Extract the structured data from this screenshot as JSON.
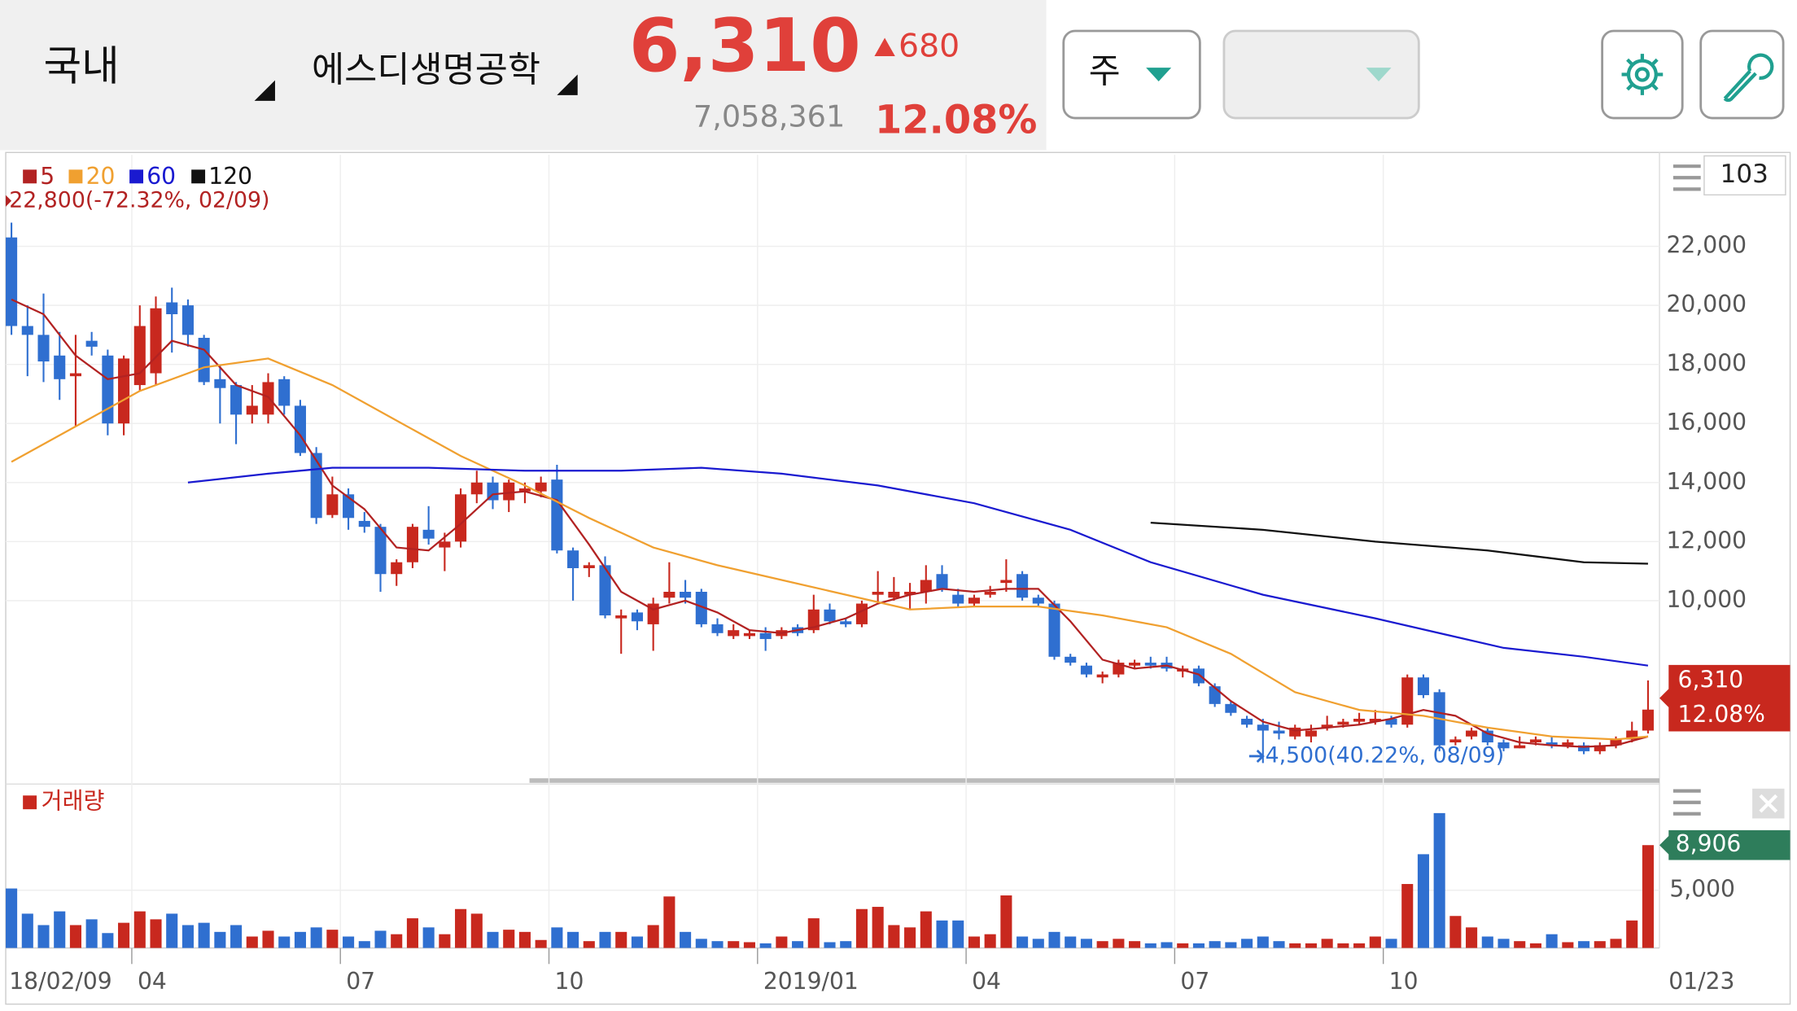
{
  "header": {
    "market": "국내",
    "stock": "에스디생명공학",
    "price": "6,310",
    "change": "680",
    "volume": "7,058,361",
    "change_pct": "12.08%",
    "period": "주",
    "count": "103"
  },
  "chart_data": {
    "type": "candlestick",
    "categories": [
      "18/02/09",
      null,
      null,
      null,
      null,
      null,
      null,
      null,
      "04",
      null,
      null,
      null,
      null,
      null,
      null,
      null,
      null,
      null,
      null,
      null,
      null,
      "07",
      null,
      null,
      null,
      null,
      null,
      null,
      null,
      null,
      null,
      null,
      null,
      null,
      "10",
      null,
      null,
      null,
      null,
      null,
      null,
      null,
      null,
      null,
      null,
      null,
      null,
      "2019/01",
      null,
      null,
      null,
      null,
      null,
      null,
      null,
      null,
      null,
      null,
      null,
      null,
      "04",
      null,
      null,
      null,
      null,
      null,
      null,
      null,
      null,
      null,
      null,
      null,
      null,
      "07",
      null,
      null,
      null,
      null,
      null,
      null,
      null,
      null,
      null,
      null,
      null,
      null,
      "10",
      null,
      null,
      null,
      null,
      null,
      null,
      null,
      null,
      null,
      null,
      null,
      null,
      null,
      null,
      null,
      "01/23"
    ],
    "open": [
      22300,
      19300,
      19000,
      18300,
      17600,
      18800,
      18300,
      16000,
      17300,
      17700,
      20100,
      20000,
      18900,
      17500,
      17300,
      16300,
      16300,
      17500,
      16600,
      15000,
      12900,
      13600,
      12700,
      12500,
      10900,
      11300,
      12400,
      11800,
      12000,
      13600,
      14000,
      13400,
      13700,
      13700,
      14100,
      11700,
      11100,
      11200,
      9400,
      9600,
      9200,
      10100,
      10300,
      10300,
      9200,
      8800,
      8800,
      8900,
      8800,
      9100,
      9000,
      9700,
      9300,
      9200,
      10200,
      10100,
      10200,
      10300,
      10900,
      10200,
      9900,
      10200,
      10600,
      10900,
      10100,
      9900,
      8100,
      7800,
      7400,
      7500,
      7800,
      7900,
      7900,
      7600,
      7700,
      7100,
      6500,
      6000,
      5800,
      5600,
      5400,
      5400,
      5700,
      5800,
      5900,
      5900,
      6000,
      5800,
      7400,
      6900,
      5200,
      5400,
      5600,
      5200,
      5000,
      5200,
      5200,
      5100,
      5100,
      4900,
      5100,
      5300,
      5600
    ],
    "high": [
      22800,
      20000,
      20400,
      19100,
      19000,
      19100,
      18500,
      18300,
      20000,
      20300,
      20600,
      20200,
      19000,
      18000,
      17400,
      17300,
      17700,
      17600,
      16800,
      15200,
      14200,
      13800,
      13000,
      12600,
      11400,
      12600,
      13200,
      12300,
      13800,
      14400,
      14200,
      14100,
      14000,
      14200,
      14600,
      11800,
      11300,
      11500,
      9700,
      9700,
      10100,
      11300,
      10700,
      10400,
      9400,
      9200,
      9000,
      9100,
      9100,
      9200,
      10200,
      9900,
      9400,
      10000,
      11000,
      10800,
      10600,
      11200,
      11200,
      10400,
      10200,
      10500,
      11400,
      11000,
      10200,
      10000,
      8200,
      7900,
      7600,
      8000,
      8000,
      8100,
      8100,
      7800,
      7800,
      7200,
      6600,
      6100,
      6000,
      5900,
      5800,
      5800,
      6100,
      6000,
      6200,
      6300,
      6100,
      7500,
      7500,
      7000,
      5400,
      5700,
      5700,
      5300,
      5400,
      5400,
      5400,
      5300,
      5200,
      5200,
      5400,
      5900,
      7300
    ],
    "low": [
      19000,
      17600,
      17400,
      16800,
      15900,
      18300,
      15600,
      15600,
      17100,
      17300,
      18400,
      18600,
      17300,
      16000,
      15300,
      16000,
      16000,
      16300,
      14900,
      12600,
      12800,
      12400,
      12300,
      10300,
      10500,
      11100,
      11900,
      11000,
      11800,
      13300,
      13100,
      13000,
      13300,
      13500,
      11600,
      10000,
      10800,
      9400,
      8200,
      9000,
      8300,
      9900,
      9900,
      9100,
      8800,
      8700,
      8700,
      8300,
      8700,
      8800,
      8900,
      9200,
      9100,
      9100,
      9900,
      10000,
      9700,
      9900,
      10300,
      9800,
      9800,
      10100,
      10300,
      10000,
      9800,
      8000,
      7800,
      7400,
      7200,
      7400,
      7700,
      7700,
      7600,
      7400,
      7100,
      6400,
      6100,
      5700,
      4500,
      5300,
      5300,
      5200,
      5600,
      5700,
      5800,
      5800,
      5700,
      5700,
      6700,
      4900,
      5100,
      5300,
      5100,
      4900,
      5000,
      5100,
      5000,
      5000,
      4800,
      4800,
      5000,
      5200,
      5500
    ],
    "close": [
      19300,
      19000,
      18100,
      17500,
      17700,
      18600,
      16000,
      18200,
      19300,
      19900,
      19700,
      19000,
      17400,
      17200,
      16300,
      16600,
      17400,
      16600,
      15000,
      12800,
      13600,
      12800,
      12500,
      10900,
      11300,
      12500,
      12100,
      12000,
      13600,
      14000,
      13400,
      14000,
      13800,
      14000,
      11700,
      11100,
      11200,
      9500,
      9500,
      9300,
      9900,
      10300,
      10100,
      9200,
      8900,
      9000,
      8900,
      8700,
      9000,
      8900,
      9700,
      9300,
      9200,
      9900,
      10300,
      10300,
      10300,
      10700,
      10400,
      9900,
      10100,
      10300,
      10700,
      10100,
      9900,
      8100,
      7900,
      7500,
      7500,
      7900,
      7900,
      7800,
      7700,
      7700,
      7200,
      6500,
      6200,
      5800,
      5600,
      5500,
      5700,
      5600,
      5800,
      5900,
      6000,
      6000,
      5800,
      7400,
      6800,
      5100,
      5300,
      5600,
      5200,
      5000,
      5100,
      5300,
      5100,
      5200,
      4900,
      5100,
      5300,
      5600,
      6310
    ],
    "up_color": "#c8281e",
    "down_color": "#2f6fd0",
    "flat_color": "#2e7d32",
    "ylim": [
      4100,
      25100
    ],
    "yticks": [
      {
        "value": 10000,
        "label": "10,000"
      },
      {
        "value": 12000,
        "label": "12,000"
      },
      {
        "value": 14000,
        "label": "14,000"
      },
      {
        "value": 16000,
        "label": "16,000"
      },
      {
        "value": 18000,
        "label": "18,000"
      },
      {
        "value": 20000,
        "label": "20,000"
      },
      {
        "value": 22000,
        "label": "22,000"
      }
    ],
    "grid": true,
    "series": [
      {
        "name": "5",
        "color": "#b22222",
        "x": [
          0,
          2,
          4,
          6,
          8,
          10,
          12,
          14,
          16,
          18,
          20,
          22,
          24,
          26,
          28,
          30,
          32,
          34,
          36,
          38,
          40,
          42,
          44,
          46,
          48,
          50,
          52,
          54,
          56,
          58,
          60,
          62,
          64,
          66,
          68,
          70,
          72,
          74,
          76,
          78,
          80,
          82,
          84,
          86,
          88,
          90,
          92,
          94,
          96,
          98,
          100,
          102
        ],
        "values": [
          20200,
          19700,
          18300,
          17500,
          17700,
          18800,
          18500,
          17300,
          16900,
          15600,
          13900,
          13100,
          11800,
          11700,
          12600,
          13600,
          13700,
          13400,
          11900,
          10300,
          9700,
          10000,
          9600,
          9000,
          8900,
          9100,
          9400,
          9900,
          10200,
          10400,
          10300,
          10400,
          10400,
          9300,
          8000,
          7700,
          7800,
          7500,
          6600,
          5900,
          5600,
          5700,
          5800,
          6000,
          6300,
          6100,
          5500,
          5200,
          5100,
          5050,
          5100,
          5400
        ]
      },
      {
        "name": "20",
        "color": "#f0a030",
        "x": [
          0,
          4,
          8,
          12,
          16,
          20,
          24,
          28,
          32,
          36,
          40,
          44,
          48,
          52,
          56,
          60,
          64,
          68,
          72,
          76,
          80,
          84,
          88,
          92,
          96,
          100,
          102
        ],
        "values": [
          14700,
          15900,
          17100,
          17900,
          18200,
          17300,
          16100,
          14900,
          13900,
          12800,
          11800,
          11200,
          10700,
          10200,
          9700,
          9800,
          9800,
          9500,
          9100,
          8200,
          6900,
          6300,
          6100,
          5700,
          5400,
          5300,
          5400
        ]
      },
      {
        "name": "60",
        "color": "#1a1ad0",
        "x": [
          11,
          16,
          20,
          26,
          32,
          38,
          43,
          48,
          54,
          60,
          66,
          71,
          78,
          85,
          93,
          98,
          102
        ],
        "values": [
          14000,
          14300,
          14500,
          14500,
          14400,
          14400,
          14500,
          14300,
          13900,
          13300,
          12400,
          11300,
          10200,
          9400,
          8400,
          8100,
          7800
        ]
      },
      {
        "name": "120",
        "color": "#111111",
        "x": [
          71,
          78,
          85,
          92,
          98,
          102
        ],
        "values": [
          12640,
          12400,
          12000,
          11700,
          11300,
          11250
        ]
      }
    ],
    "annotations": [
      "22,800(-72.32%, 02/09)",
      "4,500(40.22%, 08/09)"
    ],
    "volume": {
      "name": "거래량",
      "values": [
        5150,
        2970,
        1980,
        3170,
        1980,
        2480,
        1290,
        2180,
        3170,
        2480,
        2970,
        1980,
        2180,
        1390,
        1980,
        990,
        1490,
        990,
        1390,
        1780,
        1580,
        990,
        590,
        1490,
        1190,
        2570,
        1780,
        1190,
        3370,
        2970,
        1390,
        1580,
        1390,
        690,
        1780,
        1390,
        590,
        1390,
        1390,
        990,
        1980,
        4460,
        1390,
        790,
        590,
        590,
        500,
        400,
        990,
        590,
        2570,
        500,
        590,
        3370,
        3560,
        1980,
        1780,
        3170,
        2380,
        2380,
        990,
        1190,
        4550,
        990,
        790,
        1390,
        990,
        790,
        590,
        790,
        590,
        400,
        500,
        400,
        400,
        590,
        500,
        790,
        990,
        590,
        400,
        400,
        790,
        400,
        400,
        990,
        790,
        5540,
        8120,
        11680,
        2770,
        1780,
        990,
        790,
        590,
        400,
        1190,
        500,
        590,
        590,
        790,
        2380,
        8906
      ],
      "value_labels": {
        "102": "8,906"
      },
      "ylim": [
        0,
        13800
      ],
      "yticks": [
        {
          "value": 5000,
          "label": "5,000"
        }
      ]
    }
  }
}
